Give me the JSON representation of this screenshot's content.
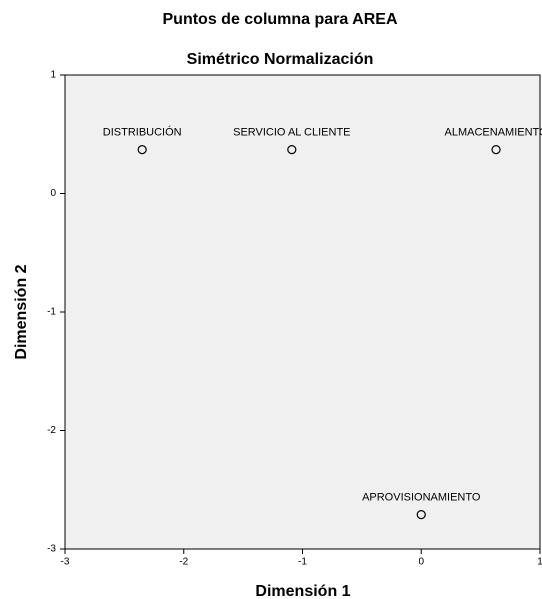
{
  "chart_data": {
    "type": "scatter",
    "title": "Puntos de columna para AREA",
    "subtitle": "Simétrico Normalización",
    "xlabel": "Dimensión 1",
    "ylabel": "Dimensión 2",
    "labels": [
      "DISTRIBUCIÓN",
      "SERVICIO AL CLIENTE",
      "ALMACENAMIENTO",
      "APROVISIONAMIENTO"
    ],
    "x": [
      -2.35,
      -1.09,
      0.63,
      0.0
    ],
    "values": [
      0.37,
      0.37,
      0.37,
      -2.71
    ],
    "xlim": [
      -3,
      1
    ],
    "xticks": [
      -3,
      -2,
      -1,
      0,
      1
    ],
    "ylim": [
      -3,
      1
    ],
    "yticks": [
      -3,
      -2,
      -1,
      0,
      1
    ],
    "color": "#000000",
    "background": "#f0f0f0",
    "grid": false
  }
}
